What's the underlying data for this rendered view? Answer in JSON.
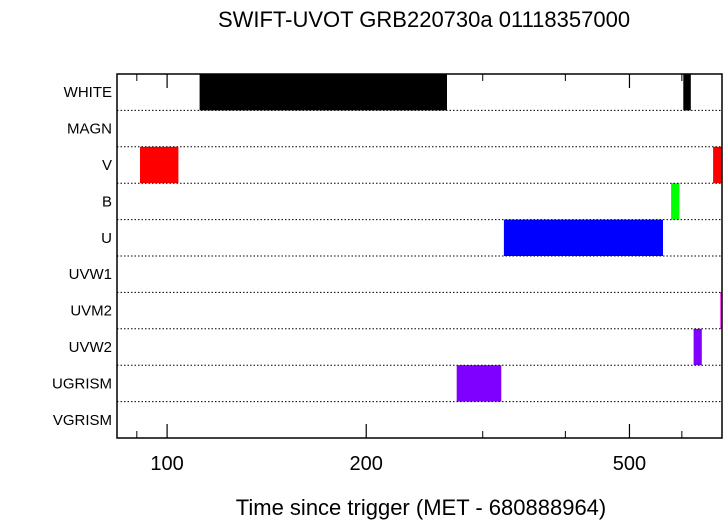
{
  "chart_data": {
    "type": "bar",
    "title": "SWIFT-UVOT GRB220730a 01118357000",
    "xlabel": "Time since trigger (MET - 680888964)",
    "ylabel": "",
    "x_scale": "log",
    "xlim": [
      84,
      690
    ],
    "x_ticks": [
      100,
      200,
      500
    ],
    "x_tick_labels": [
      "100",
      "200",
      "500"
    ],
    "x_minor_ticks": [
      90,
      300,
      400,
      600
    ],
    "grid": "dotted horizontal separators between filter rows",
    "categories": [
      "WHITE",
      "MAGN",
      "V",
      "B",
      "U",
      "UVW1",
      "UVM2",
      "UVW2",
      "UGRISM",
      "VGRISM"
    ],
    "exposures": [
      {
        "filter": "WHITE",
        "start": 112,
        "end": 265,
        "color": "#000000"
      },
      {
        "filter": "WHITE",
        "start": 603,
        "end": 619,
        "color": "#000000"
      },
      {
        "filter": "V",
        "start": 91,
        "end": 104,
        "color": "#ff0000"
      },
      {
        "filter": "V",
        "start": 669,
        "end": 689,
        "color": "#ff0000"
      },
      {
        "filter": "B",
        "start": 578,
        "end": 595,
        "color": "#00ff00"
      },
      {
        "filter": "U",
        "start": 323,
        "end": 562,
        "color": "#0000ff"
      },
      {
        "filter": "UVM2",
        "start": 686,
        "end": 690,
        "color": "#ff00ff"
      },
      {
        "filter": "UVW2",
        "start": 625,
        "end": 643,
        "color": "#7f00ff"
      },
      {
        "filter": "UGRISM",
        "start": 274,
        "end": 320,
        "color": "#7f00ff"
      }
    ]
  }
}
